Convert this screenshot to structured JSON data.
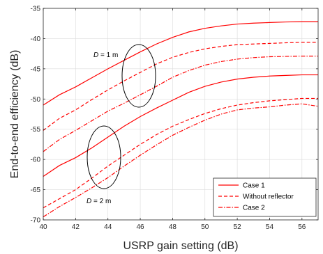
{
  "chart_data": {
    "type": "line",
    "title": "",
    "xlabel": "USRP gain setting (dB)",
    "ylabel": "End-to-end efficiency (dB)",
    "xlim": [
      40,
      57
    ],
    "ylim": [
      -70,
      -35
    ],
    "xticks": [
      40,
      42,
      44,
      46,
      48,
      50,
      52,
      54,
      56
    ],
    "yticks": [
      -70,
      -65,
      -60,
      -55,
      -50,
      -45,
      -40,
      -35
    ],
    "grid": true,
    "legend_position": "bottom-right",
    "x": [
      40,
      41,
      42,
      43,
      44,
      45,
      46,
      47,
      48,
      49,
      50,
      51,
      52,
      53,
      54,
      55,
      56,
      57
    ],
    "series": [
      {
        "name": "Case 1",
        "group": "D = 1 m",
        "style": "solid",
        "values": [
          -51.0,
          -49.3,
          -48.0,
          -46.5,
          -45.0,
          -43.6,
          -42.2,
          -40.9,
          -39.8,
          -38.9,
          -38.3,
          -37.9,
          -37.6,
          -37.45,
          -37.35,
          -37.25,
          -37.2,
          -37.2
        ]
      },
      {
        "name": "Without reflector",
        "group": "D = 1 m",
        "style": "dashed",
        "values": [
          -55.2,
          -53.2,
          -51.8,
          -50.1,
          -48.5,
          -47.0,
          -45.6,
          -44.2,
          -43.1,
          -42.3,
          -41.7,
          -41.3,
          -41.0,
          -40.9,
          -40.8,
          -40.7,
          -40.6,
          -40.6
        ]
      },
      {
        "name": "Case 2",
        "group": "D = 1 m",
        "style": "dashdot",
        "values": [
          -58.7,
          -56.7,
          -55.2,
          -53.6,
          -52.0,
          -50.7,
          -49.3,
          -47.9,
          -46.4,
          -45.3,
          -44.4,
          -43.8,
          -43.4,
          -43.15,
          -43.0,
          -42.95,
          -42.9,
          -42.9
        ]
      },
      {
        "name": "Case 1",
        "group": "D = 2 m",
        "style": "solid",
        "values": [
          -62.8,
          -61.0,
          -59.7,
          -58.1,
          -56.3,
          -54.5,
          -52.9,
          -51.5,
          -50.2,
          -48.9,
          -47.9,
          -47.2,
          -46.7,
          -46.4,
          -46.2,
          -46.1,
          -46.0,
          -46.0
        ]
      },
      {
        "name": "Without reflector",
        "group": "D = 2 m",
        "style": "dashed",
        "values": [
          -68.0,
          -66.5,
          -65.0,
          -63.1,
          -61.1,
          -59.3,
          -57.5,
          -55.9,
          -54.5,
          -53.4,
          -52.4,
          -51.6,
          -51.0,
          -50.6,
          -50.3,
          -50.1,
          -49.9,
          -49.9
        ]
      },
      {
        "name": "Case 2",
        "group": "D = 2 m",
        "style": "dashdot",
        "values": [
          -69.5,
          -67.8,
          -66.3,
          -64.7,
          -63.0,
          -61.1,
          -59.3,
          -57.6,
          -56.0,
          -54.7,
          -53.5,
          -52.5,
          -51.8,
          -51.5,
          -51.3,
          -51.0,
          -50.8,
          -51.2
        ]
      }
    ],
    "legend": [
      {
        "label": "Case 1",
        "style": "solid"
      },
      {
        "label": "Without reflector",
        "style": "dashed"
      },
      {
        "label": "Case 2",
        "style": "dashdot"
      }
    ],
    "annotations": [
      {
        "text_italic": "D",
        "text_rest": " = 1 m"
      },
      {
        "text_italic": "D",
        "text_rest": " = 2 m"
      }
    ],
    "colors": {
      "line": "#ff0000",
      "grid": "#dcdcdc",
      "axis": "#262626"
    }
  }
}
